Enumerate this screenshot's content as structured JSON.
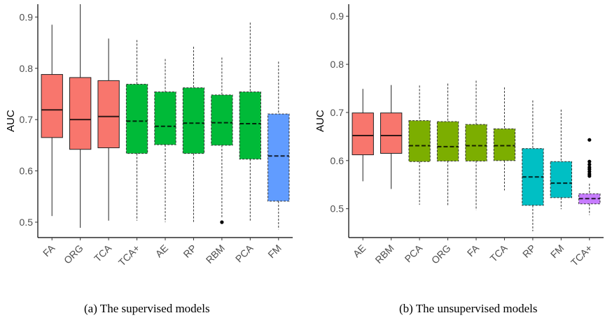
{
  "chart_data": [
    {
      "type": "box",
      "caption": "(a)  The supervised models",
      "ylabel": "AUC",
      "ylim": [
        0.47,
        0.925
      ],
      "yticks": [
        0.5,
        0.6,
        0.7,
        0.8,
        0.9
      ],
      "ytick_labels": [
        "0.5",
        "0.6",
        "0.7",
        "0.8",
        "0.9"
      ],
      "grid": false,
      "legend": "none",
      "categories": [
        "FA",
        "ORG",
        "TCA",
        "TCA+",
        "AE",
        "RP",
        "RBM",
        "PCA",
        "FM"
      ],
      "boxes": [
        {
          "label": "FA",
          "min": 0.512,
          "q1": 0.665,
          "median": 0.719,
          "q3": 0.788,
          "max": 0.885,
          "outliers": [],
          "color": "#F8766D",
          "dashed": false
        },
        {
          "label": "ORG",
          "min": 0.489,
          "q1": 0.642,
          "median": 0.7,
          "q3": 0.782,
          "max": 0.925,
          "outliers": [],
          "color": "#F8766D",
          "dashed": false
        },
        {
          "label": "TCA",
          "min": 0.503,
          "q1": 0.645,
          "median": 0.706,
          "q3": 0.776,
          "max": 0.858,
          "outliers": [],
          "color": "#F8766D",
          "dashed": false
        },
        {
          "label": "TCA+",
          "min": 0.503,
          "q1": 0.634,
          "median": 0.697,
          "q3": 0.769,
          "max": 0.855,
          "outliers": [],
          "color": "#00BA38",
          "dashed": true
        },
        {
          "label": "AE",
          "min": 0.5,
          "q1": 0.651,
          "median": 0.687,
          "q3": 0.754,
          "max": 0.818,
          "outliers": [],
          "color": "#00BA38",
          "dashed": true
        },
        {
          "label": "RP",
          "min": 0.498,
          "q1": 0.634,
          "median": 0.693,
          "q3": 0.762,
          "max": 0.842,
          "outliers": [],
          "color": "#00BA38",
          "dashed": true
        },
        {
          "label": "RBM",
          "min": 0.507,
          "q1": 0.65,
          "median": 0.694,
          "q3": 0.748,
          "max": 0.821,
          "outliers": [
            0.5
          ],
          "color": "#00BA38",
          "dashed": true
        },
        {
          "label": "PCA",
          "min": 0.503,
          "q1": 0.623,
          "median": 0.692,
          "q3": 0.754,
          "max": 0.889,
          "outliers": [],
          "color": "#00BA38",
          "dashed": true
        },
        {
          "label": "FM",
          "min": 0.486,
          "q1": 0.541,
          "median": 0.629,
          "q3": 0.711,
          "max": 0.813,
          "outliers": [],
          "color": "#619CFF",
          "dashed": true
        }
      ]
    },
    {
      "type": "box",
      "caption": "(b)  The unsupervised models",
      "ylabel": "AUC",
      "ylim": [
        0.44,
        0.925
      ],
      "yticks": [
        0.5,
        0.6,
        0.7,
        0.8,
        0.9
      ],
      "ytick_labels": [
        "0.5",
        "0.6",
        "0.7",
        "0.8",
        "0.9"
      ],
      "grid": false,
      "legend": "none",
      "categories": [
        "AE",
        "RBM",
        "PCA",
        "ORG",
        "FA",
        "TCA",
        "RP",
        "FM",
        "TCA+"
      ],
      "boxes": [
        {
          "label": "AE",
          "min": 0.557,
          "q1": 0.612,
          "median": 0.652,
          "q3": 0.699,
          "max": 0.749,
          "outliers": [],
          "color": "#F8766D",
          "dashed": false
        },
        {
          "label": "RBM",
          "min": 0.541,
          "q1": 0.615,
          "median": 0.652,
          "q3": 0.699,
          "max": 0.757,
          "outliers": [],
          "color": "#F8766D",
          "dashed": false
        },
        {
          "label": "PCA",
          "min": 0.508,
          "q1": 0.598,
          "median": 0.631,
          "q3": 0.683,
          "max": 0.756,
          "outliers": [],
          "color": "#7CAE00",
          "dashed": true
        },
        {
          "label": "ORG",
          "min": 0.507,
          "q1": 0.599,
          "median": 0.629,
          "q3": 0.681,
          "max": 0.76,
          "outliers": [],
          "color": "#7CAE00",
          "dashed": true
        },
        {
          "label": "FA",
          "min": 0.497,
          "q1": 0.599,
          "median": 0.631,
          "q3": 0.675,
          "max": 0.766,
          "outliers": [],
          "color": "#7CAE00",
          "dashed": true
        },
        {
          "label": "TCA",
          "min": 0.538,
          "q1": 0.6,
          "median": 0.631,
          "q3": 0.666,
          "max": 0.752,
          "outliers": [],
          "color": "#7CAE00",
          "dashed": true
        },
        {
          "label": "RP",
          "min": 0.453,
          "q1": 0.507,
          "median": 0.566,
          "q3": 0.625,
          "max": 0.725,
          "outliers": [],
          "color": "#00BFC4",
          "dashed": true
        },
        {
          "label": "FM",
          "min": 0.499,
          "q1": 0.523,
          "median": 0.553,
          "q3": 0.598,
          "max": 0.706,
          "outliers": [],
          "color": "#00BFC4",
          "dashed": true
        },
        {
          "label": "TCA+",
          "min": 0.487,
          "q1": 0.51,
          "median": 0.521,
          "q3": 0.531,
          "max": 0.552,
          "outliers": [
            0.643,
            0.598,
            0.592,
            0.586,
            0.582,
            0.577,
            0.572,
            0.568
          ],
          "color": "#C77CFF",
          "dashed": true
        }
      ]
    }
  ]
}
